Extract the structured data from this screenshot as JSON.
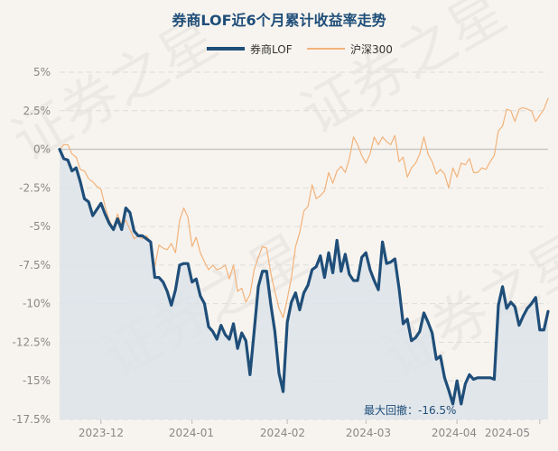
{
  "chart_data": {
    "type": "line",
    "title": "券商LOF近6个月累计收益率走势",
    "legend": [
      {
        "name": "券商LOF",
        "color": "#1f4e79",
        "style": "thick"
      },
      {
        "name": "沪深300",
        "color": "#f2b27a",
        "style": "thin"
      }
    ],
    "y_ticks": [
      "5%",
      "2.5%",
      "0%",
      "-2.5%",
      "-5%",
      "-7.5%",
      "-10%",
      "-12.5%",
      "-15%",
      "-17.5%"
    ],
    "x_ticks": [
      "2023-12",
      "2024-01",
      "2024-02",
      "2024-03",
      "2024-04",
      "2024-05"
    ],
    "ylim": [
      -17.5,
      5
    ],
    "annotation": "最大回撤：-16.5%",
    "watermark": "证券之星",
    "series": [
      {
        "name": "券商LOF",
        "values": [
          0,
          -0.6,
          -0.7,
          -1.4,
          -1.2,
          -2.1,
          -3.2,
          -3.4,
          -4.3,
          -3.9,
          -3.5,
          -4.2,
          -4.8,
          -5.2,
          -4.5,
          -5.2,
          -3.8,
          -4.1,
          -5.3,
          -5.6,
          -5.6,
          -5.8,
          -6.0,
          -8.3,
          -8.3,
          -8.6,
          -9.2,
          -10.1,
          -9.1,
          -7.5,
          -7.4,
          -7.4,
          -8.6,
          -8.4,
          -9.5,
          -10.0,
          -11.5,
          -11.8,
          -12.3,
          -11.4,
          -12.0,
          -12.3,
          -11.3,
          -12.9,
          -11.9,
          -12.4,
          -14.6,
          -11.8,
          -8.9,
          -7.9,
          -7.9,
          -10.0,
          -11.8,
          -14.5,
          -15.7,
          -11.2,
          -9.9,
          -9.3,
          -10.4,
          -9.3,
          -8.8,
          -7.8,
          -7.6,
          -6.9,
          -8.3,
          -6.7,
          -8.0,
          -5.9,
          -7.9,
          -6.8,
          -8.1,
          -8.5,
          -8.5,
          -7.0,
          -6.7,
          -7.8,
          -8.5,
          -9.1,
          -6.0,
          -7.4,
          -7.3,
          -7.1,
          -9.0,
          -11.3,
          -11.0,
          -12.4,
          -12.2,
          -11.8,
          -10.6,
          -11.2,
          -11.9,
          -13.6,
          -13.4,
          -14.8,
          -15.6,
          -16.5,
          -15.0,
          -16.5,
          -15.2,
          -14.6,
          -14.9,
          -14.8,
          -14.8,
          -14.8,
          -14.8,
          -14.9,
          -10.1,
          -8.9,
          -10.3,
          -9.9,
          -10.2,
          -11.4,
          -10.8,
          -10.3,
          -10.0,
          -9.6,
          -11.7,
          -11.7,
          -10.5
        ]
      },
      {
        "name": "沪深300",
        "values": [
          0,
          0.3,
          0.3,
          -0.3,
          -0.5,
          -1.3,
          -1.4,
          -1.9,
          -2.1,
          -2.4,
          -2.6,
          -3.7,
          -4.6,
          -5.1,
          -4.2,
          -4.9,
          -4.6,
          -5.2,
          -5.8,
          -5.6,
          -5.8,
          -5.6,
          -6.0,
          -7.6,
          -6.2,
          -6.4,
          -6.5,
          -6.1,
          -6.7,
          -4.6,
          -3.8,
          -4.4,
          -6.3,
          -5.7,
          -6.7,
          -7.3,
          -7.8,
          -7.5,
          -7.8,
          -7.7,
          -7.5,
          -8.4,
          -7.5,
          -9.2,
          -9.0,
          -9.9,
          -9.4,
          -7.8,
          -7.0,
          -6.3,
          -6.4,
          -8.0,
          -9.2,
          -10.3,
          -10.9,
          -9.7,
          -8.3,
          -6.3,
          -5.4,
          -4.0,
          -3.7,
          -2.3,
          -3.2,
          -3.0,
          -2.7,
          -1.5,
          -2.2,
          -1.4,
          -1.1,
          -1.5,
          -0.6,
          0.8,
          0.3,
          -0.4,
          -0.9,
          -0.3,
          0.8,
          0.3,
          0.8,
          0.5,
          0.3,
          0.9,
          -0.8,
          -0.5,
          -1.8,
          -1.2,
          -0.9,
          -0.3,
          0.8,
          -0.3,
          -0.8,
          -1.6,
          -1.3,
          -1.6,
          -2.5,
          -1.2,
          -1.8,
          -0.9,
          -1.0,
          -0.6,
          -1.5,
          -1.5,
          -1.2,
          -1.3,
          -0.8,
          -0.4,
          1.2,
          1.5,
          2.6,
          2.5,
          1.8,
          2.6,
          2.7,
          2.6,
          2.5,
          1.8,
          2.2,
          2.6,
          3.3
        ]
      }
    ]
  }
}
